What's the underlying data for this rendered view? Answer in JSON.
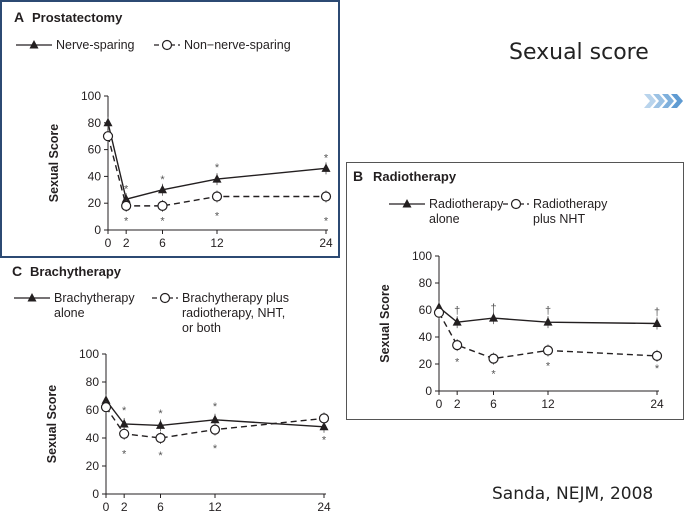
{
  "slide": {
    "title": "Sexual score",
    "citation": "Sanda, NEJM, 2008"
  },
  "chart_data": [
    {
      "type": "line",
      "letter": "A",
      "title": "Prostatectomy",
      "ylabel": "Sexual Score",
      "xlabel": "",
      "ylim": [
        0,
        100
      ],
      "yticks": [
        0,
        20,
        40,
        60,
        80,
        100
      ],
      "xticks": [
        0,
        2,
        6,
        12,
        24
      ],
      "series": [
        {
          "name": "Nerve-sparing",
          "marker": "filled-triangle",
          "dash": false,
          "x": [
            0,
            2,
            6,
            12,
            24
          ],
          "y": [
            80,
            23,
            30,
            38,
            46
          ]
        },
        {
          "name": "Non−nerve-sparing",
          "marker": "open-circle",
          "dash": true,
          "x": [
            0,
            2,
            6,
            12,
            24
          ],
          "y": [
            70,
            18,
            18,
            25,
            25
          ]
        }
      ],
      "annotations": [
        {
          "x": 2,
          "y": 31,
          "text": "*"
        },
        {
          "x": 2,
          "y": 7,
          "text": "*"
        },
        {
          "x": 6,
          "y": 38,
          "text": "*"
        },
        {
          "x": 6,
          "y": 7,
          "text": "*"
        },
        {
          "x": 12,
          "y": 47,
          "text": "*"
        },
        {
          "x": 12,
          "y": 11,
          "text": "*"
        },
        {
          "x": 24,
          "y": 54,
          "text": "*"
        },
        {
          "x": 24,
          "y": 7,
          "text": "*"
        }
      ]
    },
    {
      "type": "line",
      "letter": "B",
      "title": "Radiotherapy",
      "ylabel": "Sexual Score",
      "xlabel": "",
      "ylim": [
        0,
        100
      ],
      "yticks": [
        0,
        20,
        40,
        60,
        80,
        100
      ],
      "xticks": [
        0,
        2,
        6,
        12,
        24
      ],
      "series": [
        {
          "name": "Radiotherapy alone",
          "legend_lines": [
            "Radiotherapy",
            "alone"
          ],
          "marker": "filled-triangle",
          "dash": false,
          "x": [
            0,
            2,
            6,
            12,
            24
          ],
          "y": [
            62,
            51,
            54,
            51,
            50
          ]
        },
        {
          "name": "Radiotherapy plus NHT",
          "legend_lines": [
            "Radiotherapy",
            "plus NHT"
          ],
          "marker": "open-circle",
          "dash": true,
          "x": [
            0,
            2,
            6,
            12,
            24
          ],
          "y": [
            58,
            34,
            24,
            30,
            26
          ]
        }
      ],
      "annotations": [
        {
          "x": 2,
          "y": 60,
          "text": "†"
        },
        {
          "x": 2,
          "y": 22,
          "text": "*"
        },
        {
          "x": 6,
          "y": 62,
          "text": "†"
        },
        {
          "x": 6,
          "y": 13,
          "text": "*"
        },
        {
          "x": 12,
          "y": 60,
          "text": "†"
        },
        {
          "x": 12,
          "y": 19,
          "text": "*"
        },
        {
          "x": 24,
          "y": 59,
          "text": "†"
        },
        {
          "x": 24,
          "y": 17,
          "text": "*"
        }
      ]
    },
    {
      "type": "line",
      "letter": "C",
      "title": "Brachytherapy",
      "ylabel": "Sexual Score",
      "xlabel": "",
      "ylim": [
        0,
        100
      ],
      "yticks": [
        0,
        20,
        40,
        60,
        80,
        100
      ],
      "xticks": [
        0,
        2,
        6,
        12,
        24
      ],
      "series": [
        {
          "name": "Brachytherapy alone",
          "legend_lines": [
            "Brachytherapy",
            "alone"
          ],
          "marker": "filled-triangle",
          "dash": false,
          "x": [
            0,
            2,
            6,
            12,
            24
          ],
          "y": [
            67,
            50,
            49,
            53,
            48
          ]
        },
        {
          "name": "Brachytherapy plus radiotherapy, NHT, or both",
          "legend_lines": [
            "Brachytherapy plus",
            "radiotherapy, NHT,",
            "or both"
          ],
          "marker": "open-circle",
          "dash": true,
          "x": [
            0,
            2,
            6,
            12,
            24
          ],
          "y": [
            62,
            43,
            40,
            46,
            54
          ]
        }
      ],
      "annotations": [
        {
          "x": 2,
          "y": 60,
          "text": "*"
        },
        {
          "x": 2,
          "y": 29,
          "text": "*"
        },
        {
          "x": 6,
          "y": 58,
          "text": "*"
        },
        {
          "x": 6,
          "y": 28,
          "text": "*"
        },
        {
          "x": 12,
          "y": 63,
          "text": "*"
        },
        {
          "x": 12,
          "y": 33,
          "text": "*"
        },
        {
          "x": 24,
          "y": 39,
          "text": "*"
        }
      ]
    }
  ]
}
